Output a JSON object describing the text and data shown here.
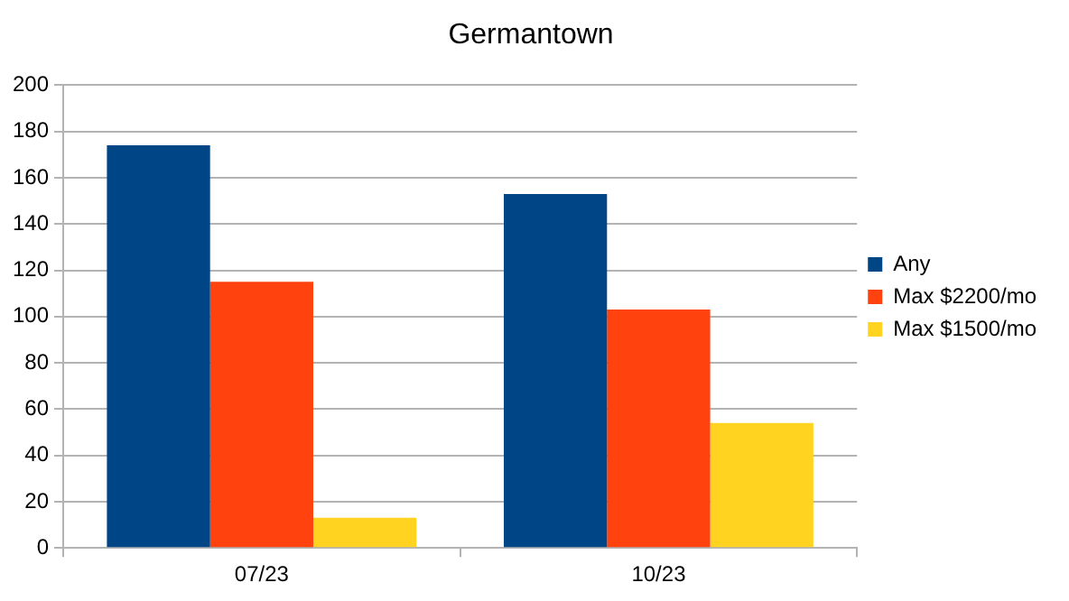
{
  "chart_data": {
    "type": "bar",
    "title": "Germantown",
    "categories": [
      "07/23",
      "10/23"
    ],
    "series": [
      {
        "name": "Any",
        "color": "#004586",
        "values": [
          174,
          153
        ]
      },
      {
        "name": "Max $2200/mo",
        "color": "#ff420e",
        "values": [
          115,
          103
        ]
      },
      {
        "name": "Max $1500/mo",
        "color": "#ffd320",
        "values": [
          13,
          54
        ]
      }
    ],
    "ylim": [
      0,
      200
    ],
    "yticks": [
      0,
      20,
      40,
      60,
      80,
      100,
      120,
      140,
      160,
      180,
      200
    ],
    "grid": "y",
    "legend": "right"
  }
}
